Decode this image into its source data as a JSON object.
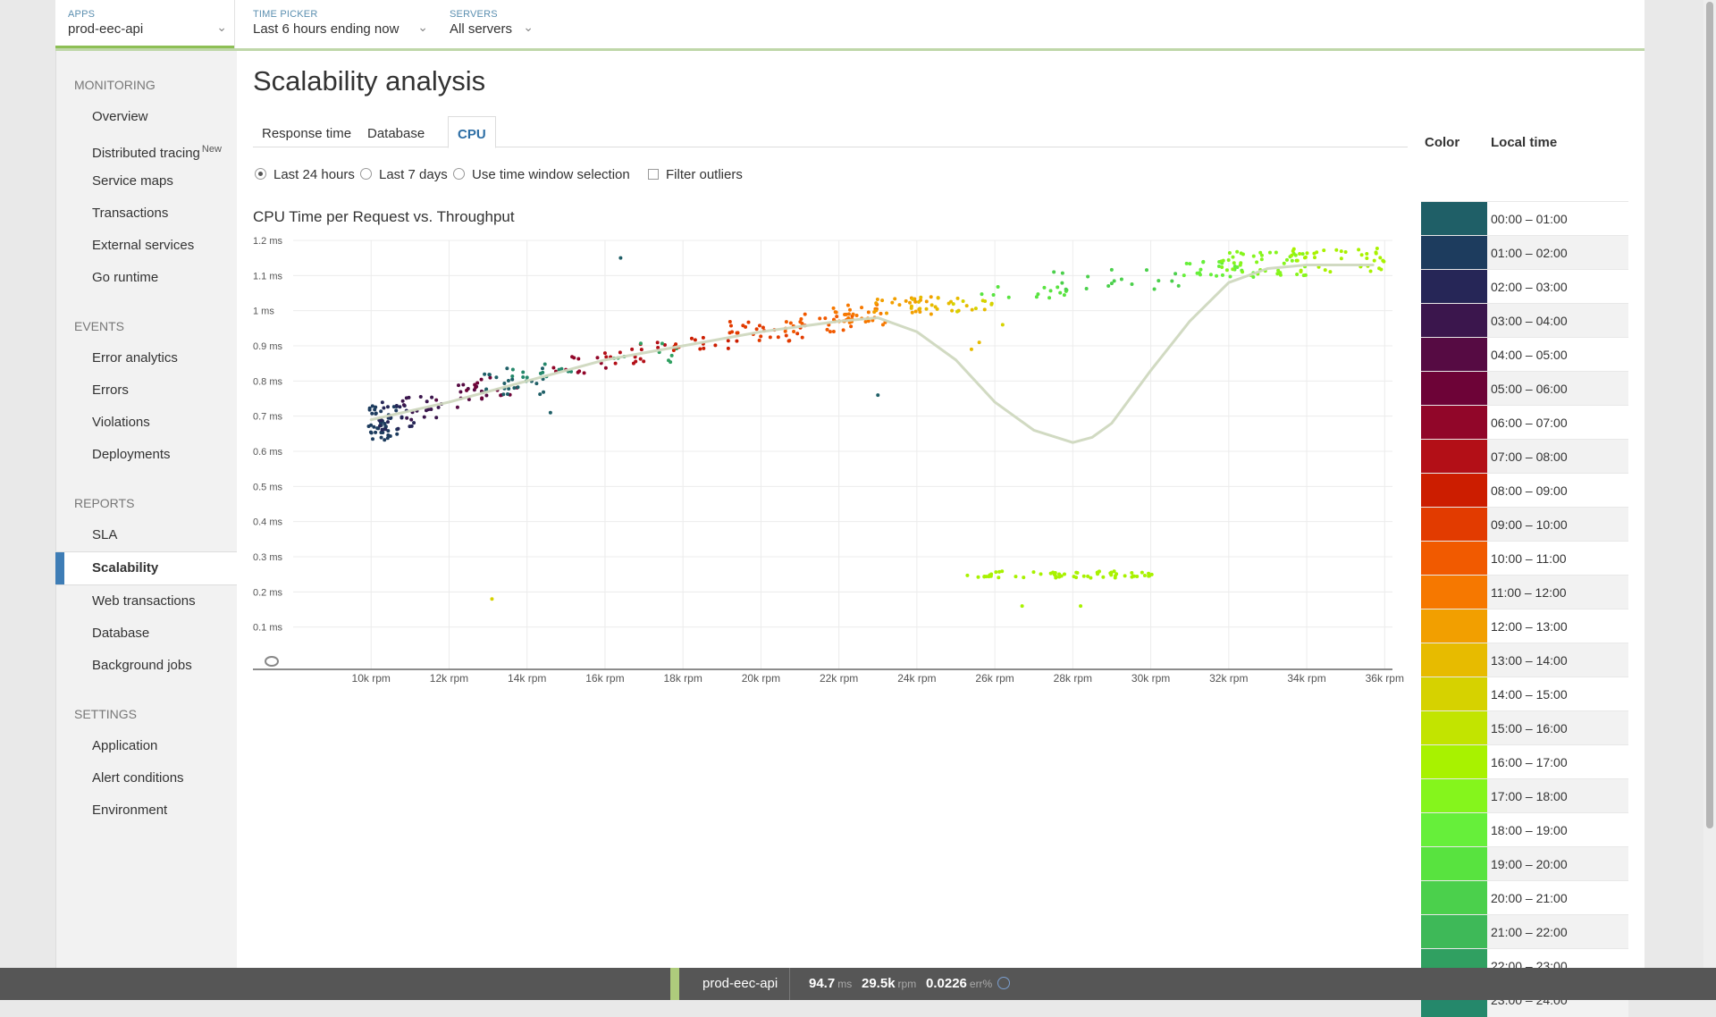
{
  "topbar": {
    "apps": {
      "caption": "APPS",
      "value": "prod-eec-api"
    },
    "time_picker": {
      "caption": "TIME PICKER",
      "value": "Last 6 hours ending now"
    },
    "servers": {
      "caption": "SERVERS",
      "value": "All servers"
    }
  },
  "sidebar": {
    "monitoring": {
      "title": "MONITORING",
      "items": [
        "Overview",
        "Distributed tracing",
        "Service maps",
        "Transactions",
        "External services",
        "Go runtime"
      ],
      "new_badge": "New"
    },
    "events": {
      "title": "EVENTS",
      "items": [
        "Error analytics",
        "Errors",
        "Violations",
        "Deployments"
      ]
    },
    "reports": {
      "title": "REPORTS",
      "items": [
        "SLA",
        "Scalability",
        "Web transactions",
        "Database",
        "Background jobs"
      ]
    },
    "settings": {
      "title": "SETTINGS",
      "items": [
        "Application",
        "Alert conditions",
        "Environment"
      ]
    }
  },
  "page": {
    "title": "Scalability analysis",
    "tabs": [
      "Response time",
      "Database",
      "CPU"
    ],
    "active_tab": "CPU",
    "options": {
      "last24": "Last 24 hours",
      "last7": "Last 7 days",
      "window": "Use time window selection",
      "filter": "Filter outliers"
    }
  },
  "legend": {
    "color_header": "Color",
    "time_header": "Local time",
    "rows": [
      {
        "label": "00:00 – 01:00",
        "color": "#1f5f67"
      },
      {
        "label": "01:00 – 02:00",
        "color": "#1d3c5e"
      },
      {
        "label": "02:00 – 03:00",
        "color": "#262657"
      },
      {
        "label": "03:00 – 04:00",
        "color": "#3b164d"
      },
      {
        "label": "04:00 – 05:00",
        "color": "#560b43"
      },
      {
        "label": "05:00 – 06:00",
        "color": "#6d0337"
      },
      {
        "label": "06:00 – 07:00",
        "color": "#910629"
      },
      {
        "label": "07:00 – 08:00",
        "color": "#b30f17"
      },
      {
        "label": "08:00 – 09:00",
        "color": "#cc1d00"
      },
      {
        "label": "09:00 – 10:00",
        "color": "#e23b00"
      },
      {
        "label": "10:00 – 11:00",
        "color": "#f15a00"
      },
      {
        "label": "11:00 – 12:00",
        "color": "#f67800"
      },
      {
        "label": "12:00 – 13:00",
        "color": "#f29f00"
      },
      {
        "label": "13:00 – 14:00",
        "color": "#e7bb00"
      },
      {
        "label": "14:00 – 15:00",
        "color": "#d6d200"
      },
      {
        "label": "15:00 – 16:00",
        "color": "#c2e400"
      },
      {
        "label": "16:00 – 17:00",
        "color": "#a8f200"
      },
      {
        "label": "17:00 – 18:00",
        "color": "#85f51c"
      },
      {
        "label": "18:00 – 19:00",
        "color": "#66ef3a"
      },
      {
        "label": "19:00 – 20:00",
        "color": "#58e33f"
      },
      {
        "label": "20:00 – 21:00",
        "color": "#4bd04c"
      },
      {
        "label": "21:00 – 22:00",
        "color": "#3eb958"
      },
      {
        "label": "22:00 – 23:00",
        "color": "#30a061"
      },
      {
        "label": "23:00 – 24:00",
        "color": "#25886b"
      }
    ]
  },
  "statusbar": {
    "app": "prod-eec-api",
    "response": "94.7",
    "response_unit": "ms",
    "throughput": "29.5k",
    "throughput_unit": "rpm",
    "error": "0.0226",
    "error_unit": "err%"
  },
  "chart_data": {
    "type": "scatter",
    "title": "CPU Time per Request vs. Throughput",
    "xlabel": "",
    "ylabel": "",
    "xlim": [
      8000,
      36200
    ],
    "ylim": [
      0,
      1.2
    ],
    "x_ticks": [
      10000,
      12000,
      14000,
      16000,
      18000,
      20000,
      22000,
      24000,
      26000,
      28000,
      30000,
      32000,
      34000,
      36000
    ],
    "x_tick_labels": [
      "10k rpm",
      "12k rpm",
      "14k rpm",
      "16k rpm",
      "18k rpm",
      "20k rpm",
      "22k rpm",
      "24k rpm",
      "26k rpm",
      "28k rpm",
      "30k rpm",
      "32k rpm",
      "34k rpm",
      "36k rpm"
    ],
    "y_ticks": [
      0.1,
      0.2,
      0.3,
      0.4,
      0.5,
      0.6,
      0.7,
      0.8,
      0.9,
      1.0,
      1.1,
      1.2
    ],
    "y_tick_labels": [
      "0.1 ms",
      "0.2 ms",
      "0.3 ms",
      "0.4 ms",
      "0.5 ms",
      "0.6 ms",
      "0.7 ms",
      "0.8 ms",
      "0.9 ms",
      "1 ms",
      "1.1 ms",
      "1.2 ms"
    ],
    "grid": true,
    "trend_line": {
      "color": "#cfd8bf",
      "x": [
        10000,
        12000,
        14000,
        16000,
        18000,
        20000,
        22000,
        23000,
        24000,
        25000,
        26000,
        27000,
        28000,
        28500,
        29000,
        30000,
        31000,
        32000,
        33000,
        34000,
        35000,
        35700
      ],
      "y": [
        0.69,
        0.74,
        0.8,
        0.86,
        0.9,
        0.94,
        0.97,
        0.98,
        0.94,
        0.86,
        0.74,
        0.66,
        0.625,
        0.64,
        0.68,
        0.83,
        0.97,
        1.08,
        1.12,
        1.13,
        1.13,
        1.13
      ]
    },
    "point_bands": [
      {
        "hour": 1,
        "x": [
          9900,
          10700
        ],
        "y": [
          0.63,
          0.73
        ],
        "count": 45
      },
      {
        "hour": 2,
        "x": [
          10200,
          11200
        ],
        "y": [
          0.66,
          0.74
        ],
        "count": 20
      },
      {
        "hour": 3,
        "x": [
          10800,
          12200
        ],
        "y": [
          0.69,
          0.76
        ],
        "count": 18
      },
      {
        "hour": 4,
        "x": [
          11600,
          13000
        ],
        "y": [
          0.72,
          0.79
        ],
        "count": 14
      },
      {
        "hour": 5,
        "x": [
          12400,
          13800
        ],
        "y": [
          0.75,
          0.81
        ],
        "count": 12
      },
      {
        "hour": 0,
        "x": [
          12800,
          14600
        ],
        "y": [
          0.76,
          0.84
        ],
        "count": 22
      },
      {
        "hour": 23,
        "x": [
          13400,
          15200
        ],
        "y": [
          0.79,
          0.85
        ],
        "count": 14
      },
      {
        "hour": 6,
        "x": [
          14600,
          16200
        ],
        "y": [
          0.82,
          0.87
        ],
        "count": 12
      },
      {
        "hour": 7,
        "x": [
          16000,
          17600
        ],
        "y": [
          0.85,
          0.91
        ],
        "count": 16
      },
      {
        "hour": 22,
        "x": [
          16200,
          18600
        ],
        "y": [
          0.85,
          0.91
        ],
        "count": 10
      },
      {
        "hour": 8,
        "x": [
          17600,
          19600
        ],
        "y": [
          0.88,
          0.93
        ],
        "count": 16
      },
      {
        "hour": 9,
        "x": [
          19200,
          21200
        ],
        "y": [
          0.91,
          0.97
        ],
        "count": 26
      },
      {
        "hour": 10,
        "x": [
          20600,
          22400
        ],
        "y": [
          0.94,
          0.99
        ],
        "count": 22
      },
      {
        "hour": 11,
        "x": [
          21800,
          23200
        ],
        "y": [
          0.96,
          1.02
        ],
        "count": 34
      },
      {
        "hour": 12,
        "x": [
          22800,
          24400
        ],
        "y": [
          0.99,
          1.04
        ],
        "count": 22
      },
      {
        "hour": 13,
        "x": [
          23600,
          25800
        ],
        "y": [
          1.0,
          1.04
        ],
        "count": 20
      },
      {
        "hour": 14,
        "x": [
          24800,
          26200
        ],
        "y": [
          0.99,
          1.03
        ],
        "count": 8
      },
      {
        "hour": 19,
        "x": [
          25600,
          28200
        ],
        "y": [
          1.03,
          1.08
        ],
        "count": 14
      },
      {
        "hour": 20,
        "x": [
          27400,
          30800
        ],
        "y": [
          1.06,
          1.12
        ],
        "count": 18
      },
      {
        "hour": 18,
        "x": [
          30800,
          32800
        ],
        "y": [
          1.09,
          1.14
        ],
        "count": 22
      },
      {
        "hour": 17,
        "x": [
          31800,
          34000
        ],
        "y": [
          1.1,
          1.17
        ],
        "count": 42
      },
      {
        "hour": 16,
        "x": [
          33600,
          36000
        ],
        "y": [
          1.11,
          1.18
        ],
        "count": 38
      },
      {
        "hour": 16,
        "x": [
          25200,
          30100
        ],
        "y": [
          0.24,
          0.26
        ],
        "count": 60
      }
    ],
    "outliers": [
      {
        "x": 16400,
        "y": 1.15,
        "hour": 0
      },
      {
        "x": 14600,
        "y": 0.71,
        "hour": 0
      },
      {
        "x": 23000,
        "y": 0.76,
        "hour": 0
      },
      {
        "x": 13100,
        "y": 0.18,
        "hour": 14
      },
      {
        "x": 26700,
        "y": 0.16,
        "hour": 16
      },
      {
        "x": 28200,
        "y": 0.16,
        "hour": 16
      },
      {
        "x": 25600,
        "y": 0.91,
        "hour": 13
      },
      {
        "x": 26200,
        "y": 0.96,
        "hour": 14
      },
      {
        "x": 25400,
        "y": 0.89,
        "hour": 13
      }
    ]
  }
}
